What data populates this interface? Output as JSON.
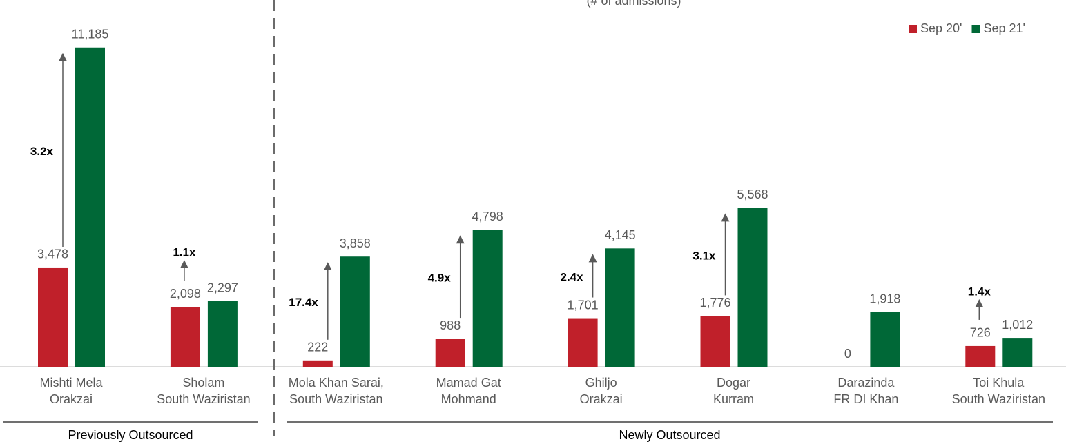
{
  "chart_data": {
    "type": "bar",
    "subtitle": "(# of admissions)",
    "groups": [
      {
        "label": "Previously Outsourced",
        "categories": [
          [
            "Mishti Mela",
            "Orakzai"
          ],
          [
            "Sholam",
            "South Waziristan"
          ]
        ]
      },
      {
        "label": "Newly Outsourced",
        "categories": [
          [
            "Mola Khan Sarai,",
            "South Waziristan"
          ],
          [
            "Mamad Gat",
            "Mohmand"
          ],
          [
            "Ghiljo",
            "Orakzai"
          ],
          [
            "Dogar",
            "Kurram"
          ],
          [
            "Darazinda",
            "FR DI Khan"
          ],
          [
            "Toi Khula",
            "South Waziristan"
          ]
        ]
      }
    ],
    "series": [
      {
        "name": "Sep 20'",
        "color": "#c0202a",
        "values": [
          3478,
          2098,
          222,
          988,
          1701,
          1776,
          0,
          726
        ],
        "value_labels": [
          "3,478",
          "2,098",
          "222",
          "988",
          "1,701",
          "1,776",
          "0",
          "726"
        ]
      },
      {
        "name": "Sep 21'",
        "color": "#006837",
        "values": [
          11185,
          2297,
          3858,
          4798,
          4145,
          5568,
          1918,
          1012
        ],
        "value_labels": [
          "11,185",
          "2,297",
          "3,858",
          "4,798",
          "4,145",
          "5,568",
          "1,918",
          "1,012"
        ]
      }
    ],
    "annotations": [
      "3.2x",
      "1.1x",
      "17.4x",
      "4.9x",
      "2.4x",
      "3.1x",
      null,
      "1.4x"
    ],
    "ylim": [
      0,
      12000
    ],
    "legend": "top-right"
  }
}
